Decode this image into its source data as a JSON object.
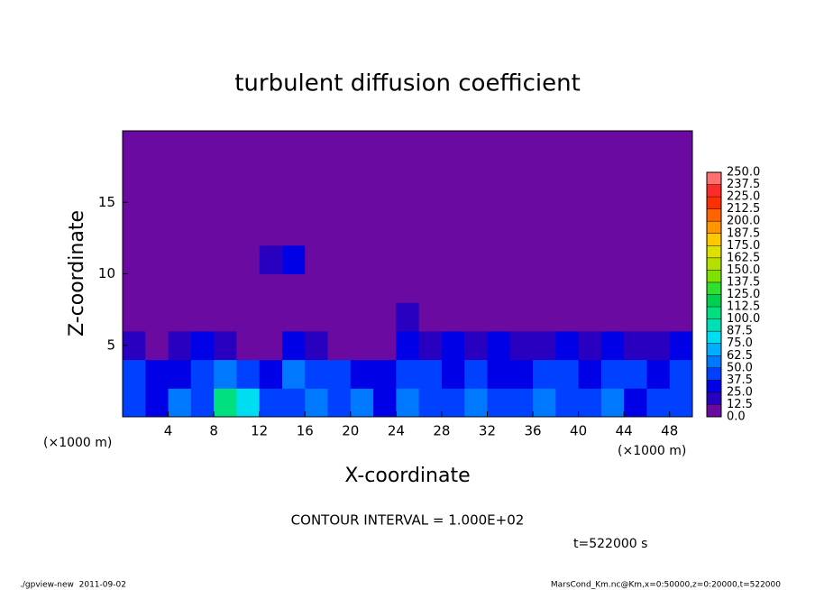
{
  "chart_data": {
    "type": "heatmap",
    "title": "turbulent diffusion coefficient",
    "x_label": "X-coordinate",
    "y_label": "Z-coordinate",
    "x_unit": "(×1000 m)",
    "y_unit": "(×1000 m)",
    "xlim": [
      0,
      50
    ],
    "ylim": [
      0,
      20
    ],
    "xticks": [
      4,
      8,
      12,
      16,
      20,
      24,
      28,
      32,
      36,
      40,
      44,
      48
    ],
    "yticks": [
      5,
      10,
      15
    ],
    "z": [
      [
        40,
        30,
        50,
        45,
        100,
        80,
        40,
        45,
        50,
        45,
        50,
        35,
        55,
        45,
        40,
        50,
        45,
        40,
        50,
        45,
        40,
        50,
        35,
        45,
        40
      ],
      [
        45,
        35,
        30,
        40,
        55,
        40,
        30,
        50,
        45,
        40,
        30,
        25,
        40,
        45,
        35,
        40,
        30,
        35,
        40,
        45,
        35,
        40,
        45,
        35,
        40
      ],
      [
        20,
        10,
        15,
        30,
        20,
        5,
        5,
        25,
        20,
        10,
        5,
        5,
        30,
        20,
        25,
        20,
        25,
        15,
        20,
        25,
        20,
        25,
        15,
        20,
        25
      ],
      [
        0,
        0,
        0,
        0,
        0,
        0,
        0,
        0,
        0,
        0,
        0,
        0,
        15,
        10,
        0,
        0,
        0,
        0,
        0,
        0,
        0,
        0,
        0,
        0,
        0
      ],
      [
        0,
        0,
        0,
        0,
        0,
        0,
        0,
        0,
        0,
        0,
        0,
        0,
        0,
        0,
        0,
        0,
        0,
        0,
        0,
        0,
        0,
        0,
        0,
        0,
        0
      ],
      [
        0,
        0,
        0,
        0,
        0,
        0,
        15,
        30,
        0,
        0,
        0,
        0,
        0,
        0,
        0,
        0,
        0,
        0,
        0,
        0,
        0,
        0,
        0,
        0,
        0
      ],
      [
        0,
        0,
        0,
        0,
        0,
        0,
        0,
        0,
        0,
        0,
        0,
        0,
        0,
        0,
        0,
        0,
        0,
        0,
        0,
        0,
        0,
        0,
        0,
        0,
        0
      ],
      [
        0,
        0,
        0,
        0,
        0,
        0,
        0,
        0,
        0,
        0,
        0,
        0,
        0,
        0,
        0,
        0,
        0,
        0,
        0,
        0,
        0,
        0,
        0,
        0,
        0
      ],
      [
        0,
        0,
        0,
        0,
        0,
        0,
        0,
        0,
        0,
        0,
        0,
        0,
        0,
        0,
        0,
        0,
        0,
        0,
        0,
        0,
        0,
        0,
        0,
        0,
        0
      ],
      [
        0,
        0,
        0,
        0,
        0,
        0,
        0,
        0,
        0,
        0,
        0,
        0,
        0,
        0,
        0,
        0,
        0,
        0,
        0,
        0,
        0,
        0,
        0,
        0,
        0
      ]
    ],
    "colorbar": {
      "levels": [
        {
          "value": 0,
          "label": "0.0"
        },
        12.5,
        {
          "value": 25,
          "label": "25.0"
        },
        37.5,
        {
          "value": 50,
          "label": "50.0"
        },
        62.5,
        {
          "value": 75,
          "label": "75.0"
        },
        87.5,
        {
          "value": 100,
          "label": "100.0"
        },
        112.5,
        {
          "value": 125,
          "label": "125.0"
        },
        137.5,
        {
          "value": 150,
          "label": "150.0"
        },
        162.5,
        {
          "value": 175,
          "label": "175.0"
        },
        187.5,
        {
          "value": 200,
          "label": "200.0"
        },
        212.5,
        {
          "value": 225,
          "label": "225.0"
        },
        237.5,
        {
          "value": 250,
          "label": "250.0"
        }
      ],
      "colors": [
        "#6a0aa0",
        "#2a00c0",
        "#0000e6",
        "#0040ff",
        "#0078ff",
        "#00aeff",
        "#00dcf0",
        "#00e0b4",
        "#00e080",
        "#00d050",
        "#30e030",
        "#80e000",
        "#b4e000",
        "#e0e000",
        "#ffc800",
        "#ff9600",
        "#ff6400",
        "#ff3000",
        "#ff2a2a",
        "#ff7070"
      ]
    },
    "annotation": "CONTOUR INTERVAL = 1.000E+02",
    "time_label": "t=522000 s",
    "footer_left": "./gpview-new  2011-09-02",
    "footer_right": "MarsCond_Km.nc@Km,x=0:50000,z=0:20000,t=522000"
  }
}
